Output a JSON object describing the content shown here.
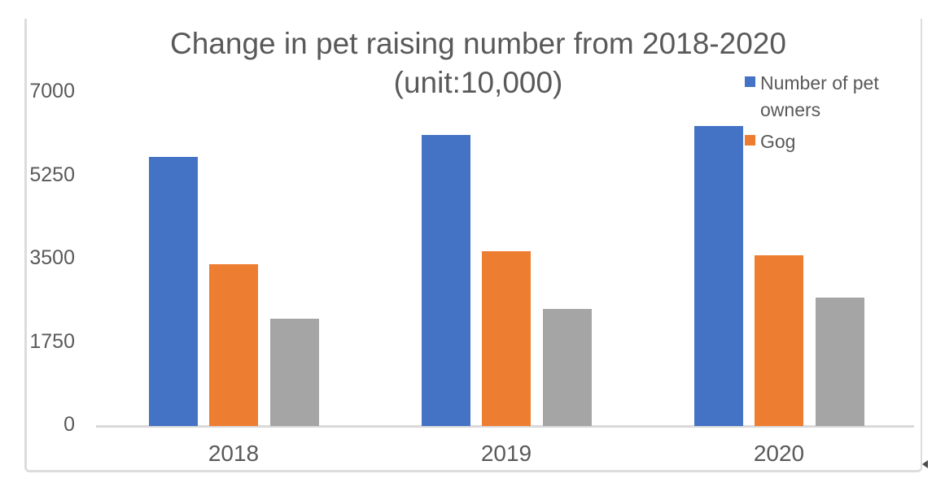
{
  "title": {
    "line1": "Change in pet raising number from 2018-2020",
    "line2": "(unit:10,000)"
  },
  "legend": {
    "items": [
      {
        "label": "Number of pet owners",
        "color": "#4472C4"
      },
      {
        "label": "Gog",
        "color": "#ED7D31"
      }
    ]
  },
  "colors": {
    "series_blue": "#4472C4",
    "series_orange": "#ED7D31",
    "series_gray": "#A5A5A5",
    "axis_line": "#D9D9D9",
    "chart_border": "#DCDCDC",
    "text": "#595959"
  },
  "chart_data": {
    "type": "bar",
    "title": "Change in pet raising number from 2018-2020 (unit:10,000)",
    "categories": [
      "2018",
      "2019",
      "2020"
    ],
    "series": [
      {
        "name": "Number of pet owners",
        "color": "#4472C4",
        "values": [
          5648,
          6120,
          6294
        ]
      },
      {
        "name": "Gog",
        "color": "#ED7D31",
        "values": [
          3390,
          3669,
          3593
        ]
      },
      {
        "name": "",
        "color": "#A5A5A5",
        "values": [
          2258,
          2451,
          2701
        ]
      }
    ],
    "xlabel": "",
    "ylabel": "",
    "ylim": [
      0,
      7000
    ],
    "yticks": [
      0,
      1750,
      3500,
      5250,
      7000
    ],
    "grid": false,
    "legend_position": "top-right"
  }
}
